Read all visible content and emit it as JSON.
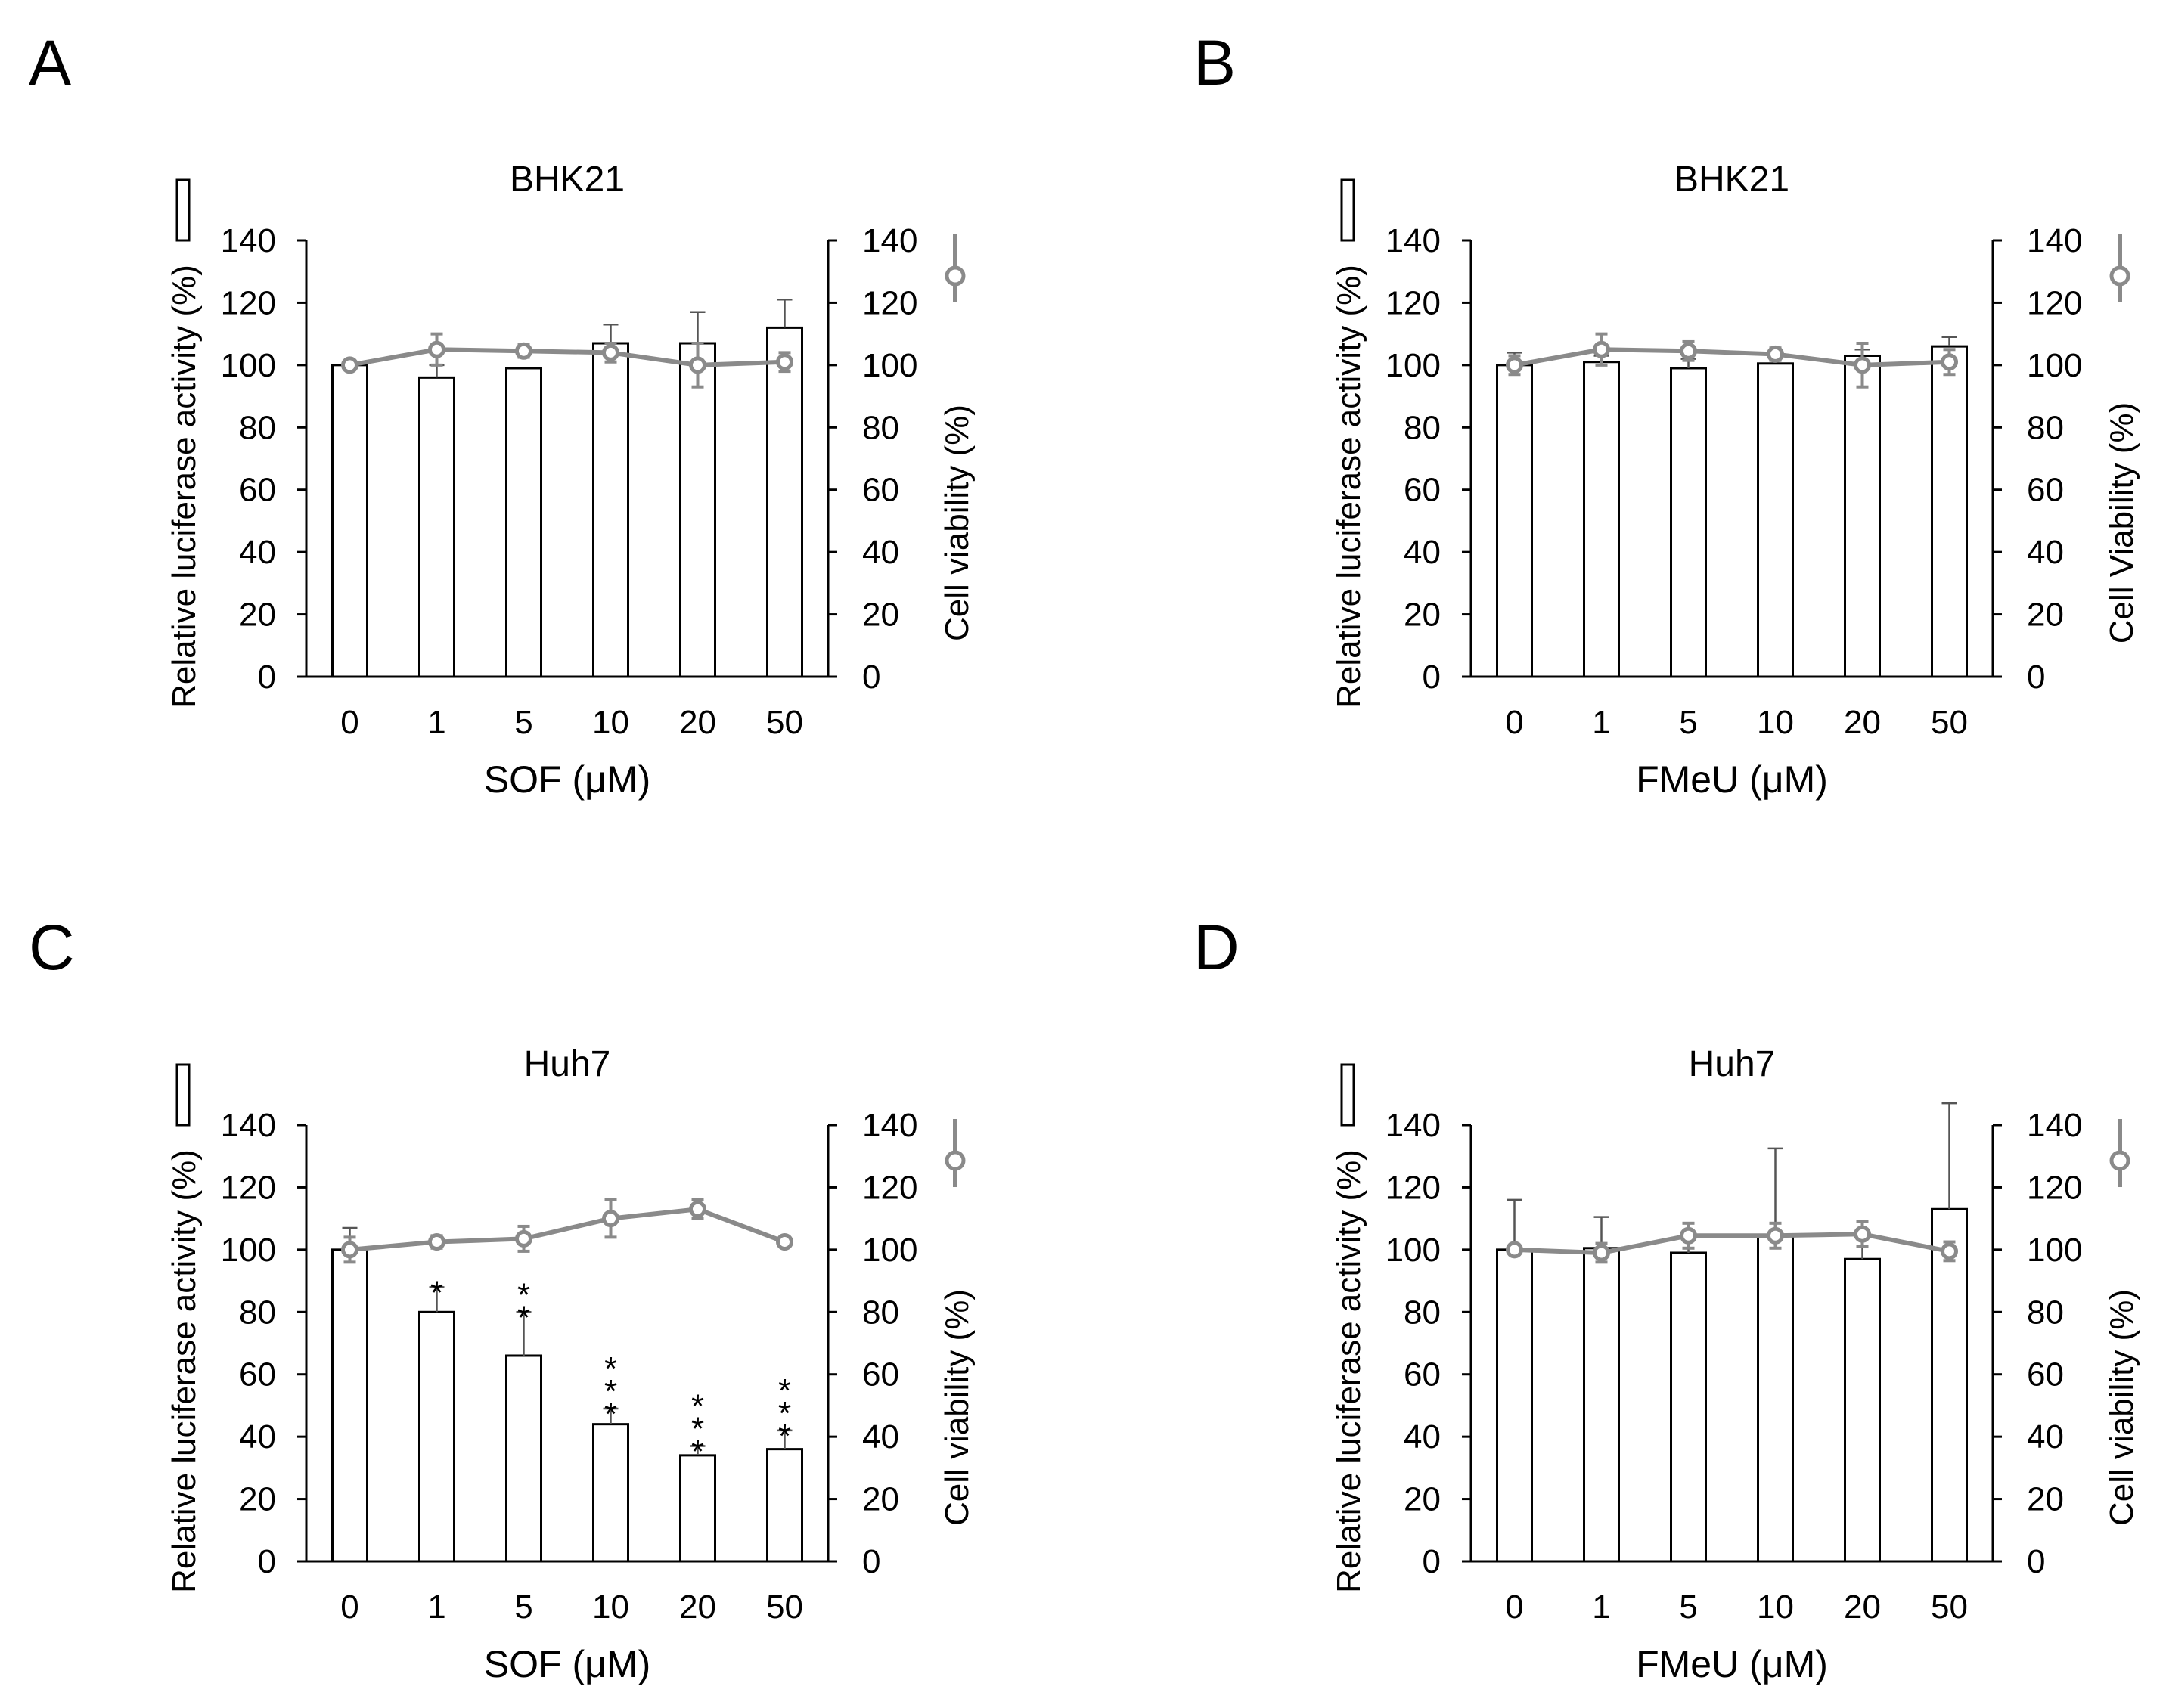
{
  "chart_data": [
    {
      "panel": "A",
      "type": "bar",
      "title": "BHK21",
      "xlabel": "SOF (μM)",
      "ylabel_left": "Relative luciferase activity (%)",
      "ylabel_right": "Cell viability (%)",
      "categories": [
        "0",
        "1",
        "5",
        "10",
        "20",
        "50"
      ],
      "ylim": [
        0,
        140
      ],
      "yticks": [
        0,
        20,
        40,
        60,
        80,
        100,
        120,
        140
      ],
      "bars": {
        "name": "Relative luciferase activity (%)",
        "values": [
          100,
          96,
          99,
          107,
          107,
          112
        ],
        "errors": [
          0,
          4,
          0,
          6,
          10,
          9
        ]
      },
      "line": {
        "name": "Cell viability (%)",
        "values": [
          100,
          105,
          104.5,
          104,
          100,
          101
        ],
        "errors": [
          0,
          5,
          2,
          3,
          7,
          3
        ]
      },
      "stars": [
        "",
        "",
        "",
        "",
        "",
        ""
      ]
    },
    {
      "panel": "B",
      "type": "bar",
      "title": "BHK21",
      "xlabel": "FMeU (μM)",
      "ylabel_left": "Relative luciferase activity (%)",
      "ylabel_right": "Cell Viability (%)",
      "categories": [
        "0",
        "1",
        "5",
        "10",
        "20",
        "50"
      ],
      "ylim": [
        0,
        140
      ],
      "yticks": [
        0,
        20,
        40,
        60,
        80,
        100,
        120,
        140
      ],
      "bars": {
        "name": "Relative luciferase activity (%)",
        "values": [
          100,
          101,
          99,
          100.5,
          103,
          106
        ],
        "errors": [
          4,
          2,
          3,
          0,
          2,
          3
        ]
      },
      "line": {
        "name": "Cell Viability (%)",
        "values": [
          100,
          105,
          104.5,
          103.5,
          100,
          101
        ],
        "errors": [
          3,
          5,
          3,
          2,
          7,
          4
        ]
      },
      "stars": [
        "",
        "",
        "",
        "",
        "",
        ""
      ]
    },
    {
      "panel": "C",
      "type": "bar",
      "title": "Huh7",
      "xlabel": "SOF (μM)",
      "ylabel_left": "Relative luciferase activity (%)",
      "ylabel_right": "Cell viability (%)",
      "categories": [
        "0",
        "1",
        "5",
        "10",
        "20",
        "50"
      ],
      "ylim": [
        0,
        140
      ],
      "yticks": [
        0,
        20,
        40,
        60,
        80,
        100,
        120,
        140
      ],
      "bars": {
        "name": "Relative luciferase activity (%)",
        "values": [
          100,
          80,
          66,
          44,
          34,
          36
        ],
        "errors": [
          7,
          8,
          14,
          5,
          3,
          6
        ]
      },
      "line": {
        "name": "Cell viability (%)",
        "values": [
          100,
          102.5,
          103.5,
          110,
          113,
          102.5
        ],
        "errors": [
          4,
          2,
          4,
          6,
          3,
          0
        ]
      },
      "stars": [
        "",
        "*",
        "**",
        "***",
        "***",
        "***"
      ]
    },
    {
      "panel": "D",
      "type": "bar",
      "title": "Huh7",
      "xlabel": "FMeU (μM)",
      "ylabel_left": "Relative luciferase activity (%)",
      "ylabel_right": "Cell viability (%)",
      "categories": [
        "0",
        "1",
        "5",
        "10",
        "20",
        "50"
      ],
      "ylim": [
        0,
        140
      ],
      "yticks": [
        0,
        20,
        40,
        60,
        80,
        100,
        120,
        140
      ],
      "bars": {
        "name": "Relative luciferase activity (%)",
        "values": [
          100,
          100.5,
          99,
          104.5,
          97,
          113
        ],
        "errors": [
          16,
          10,
          5,
          28,
          9,
          34
        ]
      },
      "line": {
        "name": "Cell viability (%)",
        "values": [
          100,
          99,
          104.5,
          104.5,
          105,
          99.5
        ],
        "errors": [
          0,
          3,
          4,
          4,
          4,
          3
        ]
      },
      "stars": [
        "",
        "",
        "",
        "",
        "",
        ""
      ]
    }
  ],
  "colors": {
    "bar_fill": "#ffffff",
    "bar_stroke": "#000000",
    "line": "#8a8a8a"
  }
}
